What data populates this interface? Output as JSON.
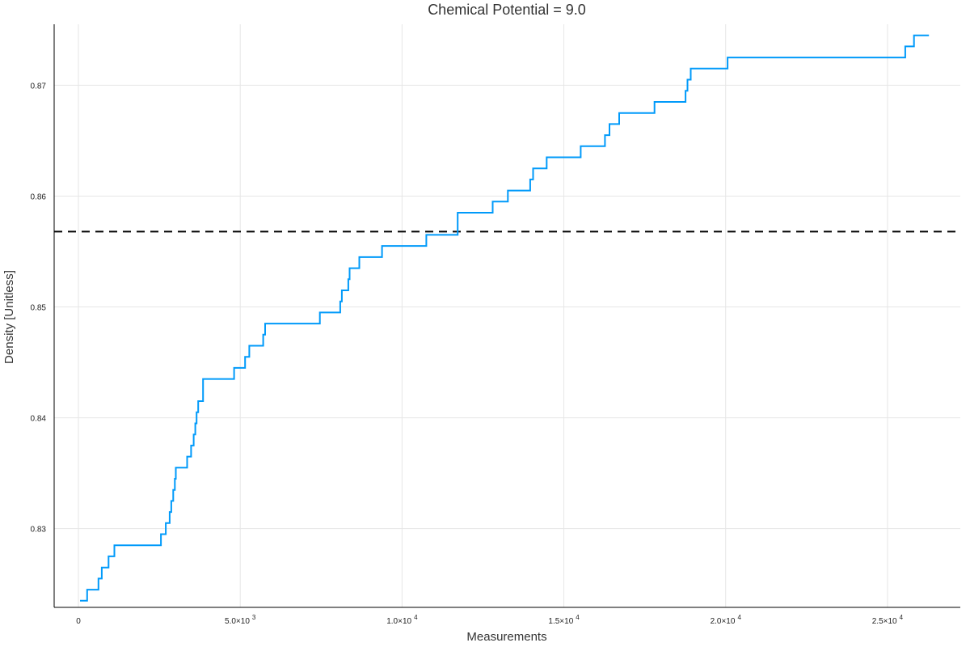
{
  "chart_data": {
    "type": "line",
    "title": "Chemical Potential = 9.0",
    "xlabel": "Measurements",
    "ylabel": "Density [Unitless]",
    "xlim": [
      -750,
      27250
    ],
    "ylim": [
      0.8229,
      0.8755
    ],
    "x_ticks": [
      {
        "value": 0,
        "label": "0",
        "exp": ""
      },
      {
        "value": 5000,
        "label": "5.0×10",
        "exp": "3"
      },
      {
        "value": 10000,
        "label": "1.0×10",
        "exp": "4"
      },
      {
        "value": 15000,
        "label": "1.5×10",
        "exp": "4"
      },
      {
        "value": 20000,
        "label": "2.0×10",
        "exp": "4"
      },
      {
        "value": 25000,
        "label": "2.5×10",
        "exp": "4"
      }
    ],
    "y_ticks": [
      {
        "value": 0.83,
        "label": "0.83"
      },
      {
        "value": 0.84,
        "label": "0.84"
      },
      {
        "value": 0.85,
        "label": "0.85"
      },
      {
        "value": 0.86,
        "label": "0.86"
      },
      {
        "value": 0.87,
        "label": "0.87"
      }
    ],
    "grid": true,
    "legend": "none",
    "series": [
      {
        "color": "#009AFA",
        "step": true,
        "x": [
          50,
          270,
          620,
          720,
          930,
          1110,
          2550,
          2700,
          2820,
          2870,
          2930,
          2980,
          3010,
          3020,
          3360,
          3480,
          3560,
          3610,
          3650,
          3700,
          3850,
          3920,
          4810,
          5150,
          5280,
          5710,
          5770,
          7460,
          8090,
          8140,
          8340,
          8380,
          8480,
          8680,
          9380,
          10750,
          11720,
          12800,
          13270,
          13960,
          14050,
          14470,
          15520,
          16270,
          16410,
          16710,
          17800,
          18760,
          18820,
          18920,
          19080,
          20060,
          25550,
          25820,
          26280
        ],
        "y": [
          0.8235,
          0.8245,
          0.8255,
          0.8265,
          0.8275,
          0.8285,
          0.8295,
          0.8305,
          0.8315,
          0.8325,
          0.8335,
          0.8345,
          0.8355,
          0.8355,
          0.8365,
          0.8375,
          0.8385,
          0.8395,
          0.8405,
          0.8415,
          0.8435,
          0.8435,
          0.8445,
          0.8455,
          0.8465,
          0.8475,
          0.8485,
          0.8495,
          0.8505,
          0.8515,
          0.8525,
          0.8535,
          0.8535,
          0.8545,
          0.8555,
          0.8565,
          0.8585,
          0.8595,
          0.8605,
          0.8615,
          0.8625,
          0.8635,
          0.8645,
          0.8655,
          0.8665,
          0.8675,
          0.8685,
          0.8695,
          0.8705,
          0.8715,
          0.8715,
          0.8725,
          0.8735,
          0.8745,
          0.8745
        ]
      }
    ],
    "reference_line": {
      "y": 0.8568,
      "color": "#000000",
      "style": "dashed"
    }
  }
}
